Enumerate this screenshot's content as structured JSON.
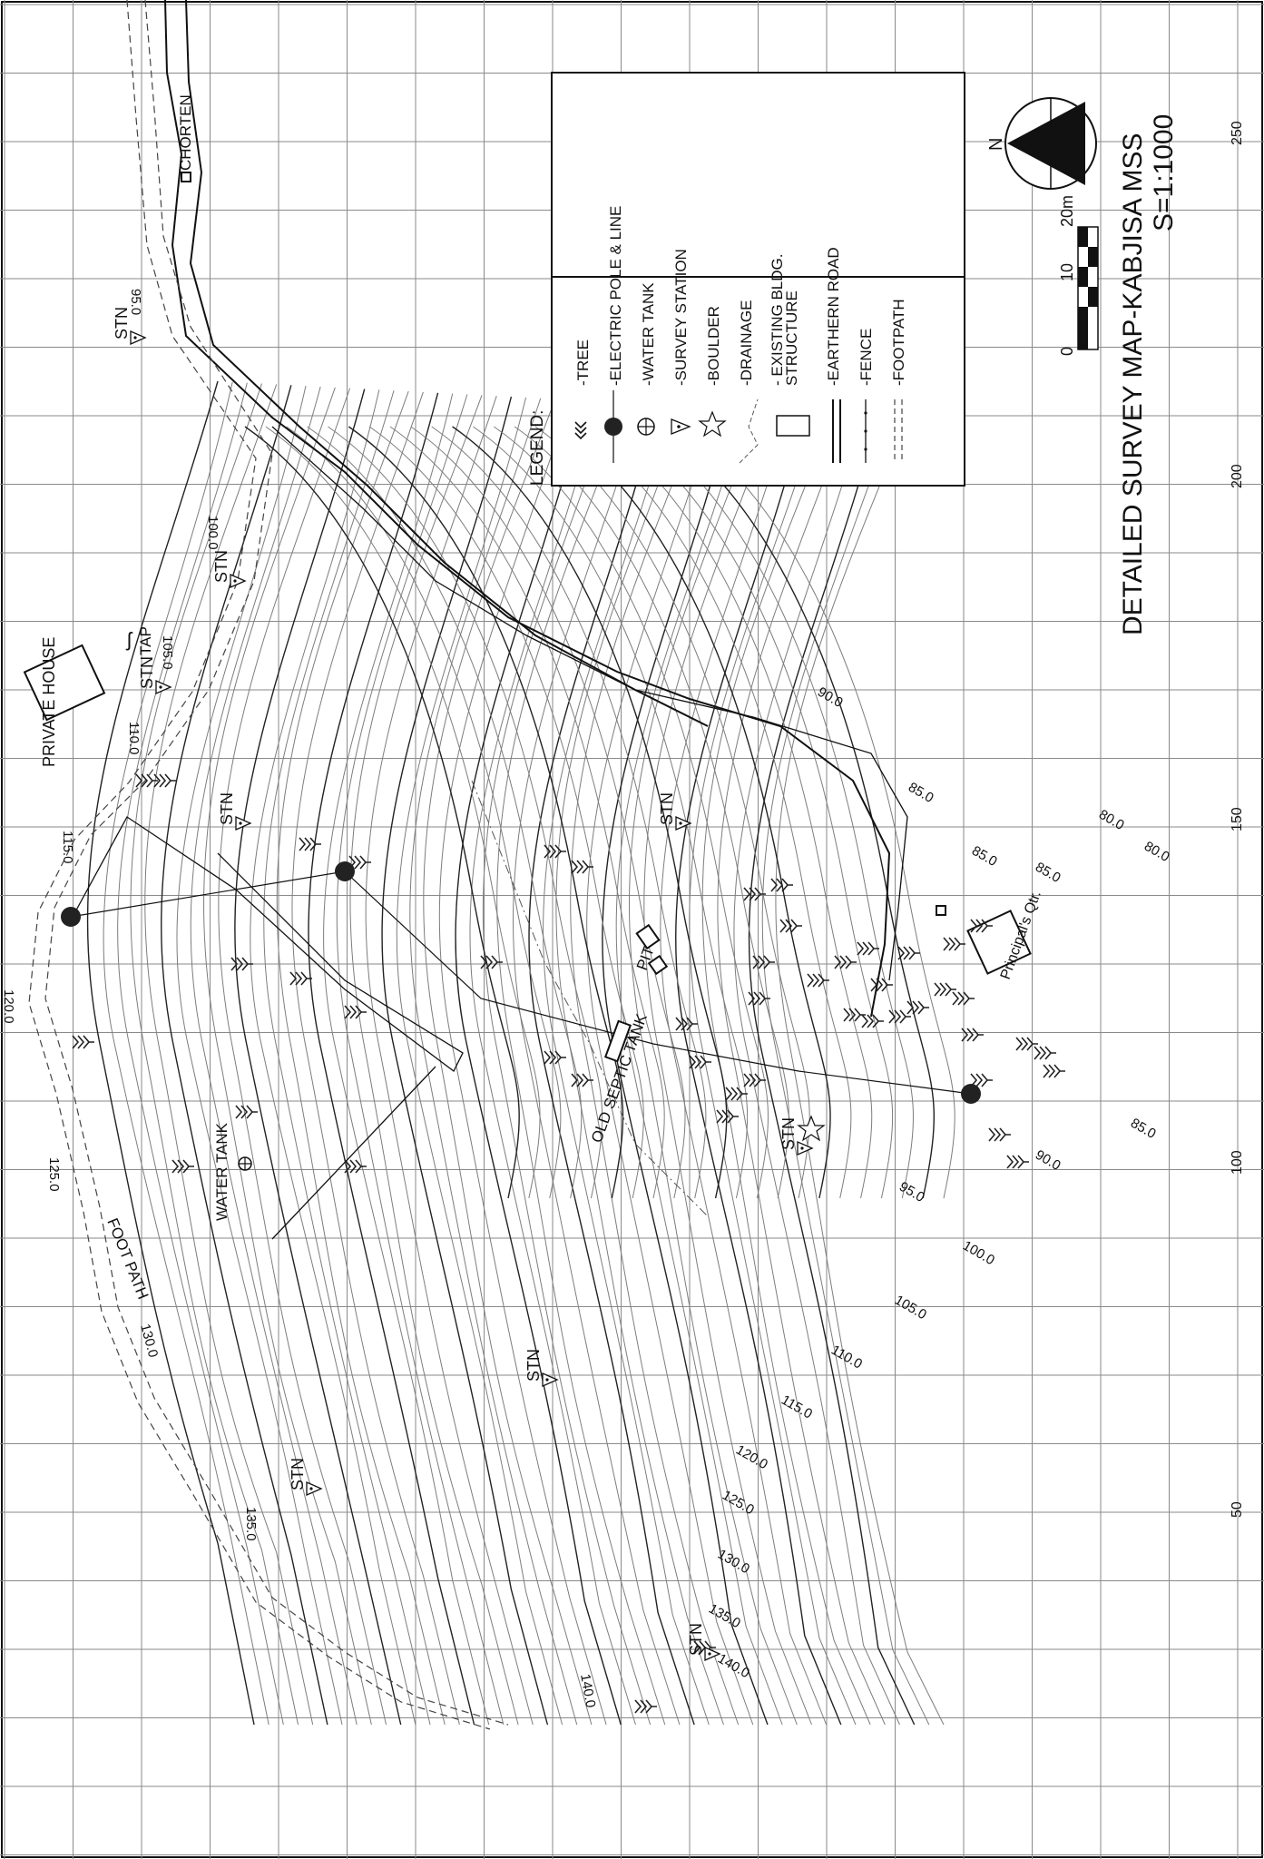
{
  "title": "DETAILED SURVEY MAP-KABJISA MSS",
  "scale_text": "S=1:1000",
  "north_label": "N",
  "scalebar": {
    "labels": [
      "0",
      "10",
      "20m"
    ]
  },
  "legend": {
    "heading": "LEGEND:",
    "items": [
      {
        "symbol": "tree-icon",
        "label": "-TREE"
      },
      {
        "symbol": "electric-pole-icon",
        "label": "-ELECTRIC POLE & LINE"
      },
      {
        "symbol": "water-tank-icon",
        "label": "-WATER TANK"
      },
      {
        "symbol": "survey-station-icon",
        "label": "-SURVEY STATION"
      },
      {
        "symbol": "boulder-icon",
        "label": "-BOULDER"
      },
      {
        "symbol": "drainage-icon",
        "label": "-DRAINAGE"
      },
      {
        "symbol": "building-icon",
        "label": "- EXISTING BLDG."
      },
      {
        "symbol": "building-icon",
        "label": "STRUCTURE"
      },
      {
        "symbol": "road-icon",
        "label": "-EARTHERN ROAD"
      },
      {
        "symbol": "fence-icon",
        "label": "-FENCE"
      },
      {
        "symbol": "footpath-icon",
        "label": "-FOOTPATH"
      }
    ]
  },
  "axis_ticks": [
    "250",
    "200",
    "150",
    "100",
    "50"
  ],
  "places": {
    "private_house": "PRIVATE HOUSE",
    "chorten": "CHORTEN",
    "tap": "TAP",
    "water_tank": "WATER TANK",
    "foot_path": "FOOT PATH",
    "old_septic_tank": "OLD SEPTIC TANK",
    "pit": "PIT",
    "principals_qtr": "Principal's Qtr."
  },
  "station_label": "STN",
  "contour_labels": {
    "c95": "95.0",
    "c100": "100.0",
    "c105": "105.0",
    "c110": "110.0",
    "c115": "115.0",
    "c120": "120.0",
    "c125": "125.0",
    "c130": "130.0",
    "c135": "135.0",
    "c140": "140.0",
    "c90": "90.0",
    "c85": "85.0",
    "c80": "80.0"
  },
  "colors": {
    "ink": "#111111",
    "grid": "#8a8a8a",
    "contour": "#7d7d7d"
  }
}
